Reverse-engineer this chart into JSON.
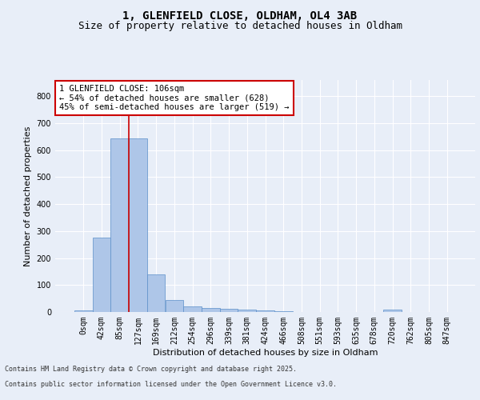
{
  "title_line1": "1, GLENFIELD CLOSE, OLDHAM, OL4 3AB",
  "title_line2": "Size of property relative to detached houses in Oldham",
  "xlabel": "Distribution of detached houses by size in Oldham",
  "ylabel": "Number of detached properties",
  "footer_line1": "Contains HM Land Registry data © Crown copyright and database right 2025.",
  "footer_line2": "Contains public sector information licensed under the Open Government Licence v3.0.",
  "categories": [
    "0sqm",
    "42sqm",
    "85sqm",
    "127sqm",
    "169sqm",
    "212sqm",
    "254sqm",
    "296sqm",
    "339sqm",
    "381sqm",
    "424sqm",
    "466sqm",
    "508sqm",
    "551sqm",
    "593sqm",
    "635sqm",
    "678sqm",
    "720sqm",
    "762sqm",
    "805sqm",
    "847sqm"
  ],
  "values": [
    5,
    275,
    645,
    645,
    140,
    45,
    20,
    15,
    12,
    10,
    6,
    4,
    1,
    0,
    0,
    0,
    0,
    8,
    0,
    0,
    0
  ],
  "bar_color": "#aec6e8",
  "bar_edge_color": "#5b8fc9",
  "ylim": [
    0,
    860
  ],
  "yticks": [
    0,
    100,
    200,
    300,
    400,
    500,
    600,
    700,
    800
  ],
  "vline_x": 2.5,
  "vline_color": "#cc0000",
  "annotation_text": "1 GLENFIELD CLOSE: 106sqm\n← 54% of detached houses are smaller (628)\n45% of semi-detached houses are larger (519) →",
  "annotation_box_color": "#ffffff",
  "annotation_box_edge": "#cc0000",
  "background_color": "#e8eef8",
  "plot_bg_color": "#e8eef8",
  "grid_color": "#ffffff",
  "title_fontsize": 10,
  "subtitle_fontsize": 9,
  "axis_label_fontsize": 8,
  "tick_fontsize": 7,
  "annotation_fontsize": 7.5,
  "footer_fontsize": 6
}
